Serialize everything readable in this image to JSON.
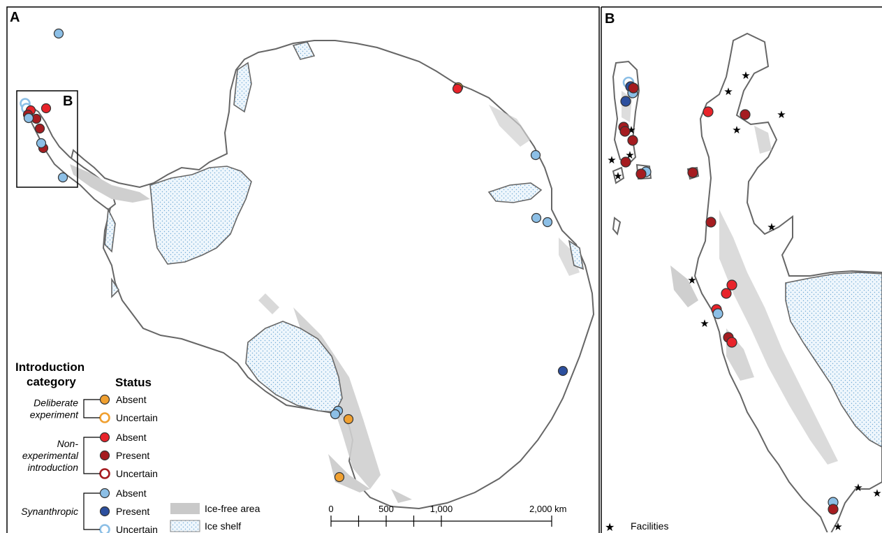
{
  "panels": {
    "a_label": "A",
    "b_label": "B",
    "inset_label": "B"
  },
  "colors": {
    "deliberate_absent": "#f0a030",
    "nonexp_absent": "#e8232a",
    "nonexp_present": "#a51c20",
    "synan_absent": "#8cbfe6",
    "synan_present": "#2c4f9e",
    "ice_free": "#c9c9c9",
    "ice_shelf_fill": "#e6f2fa",
    "ice_shelf_dots": "#7fb7dd",
    "coast": "#666666"
  },
  "legend": {
    "title_line1": "Introduction",
    "title_line2": "category",
    "status_title": "Status",
    "groups": [
      {
        "name_lines": [
          "Deliberate",
          "experiment"
        ],
        "items": [
          {
            "label": "Absent",
            "style": "filled",
            "color": "#f0a030"
          },
          {
            "label": "Uncertain",
            "style": "ring",
            "color": "#f0a030"
          }
        ]
      },
      {
        "name_lines": [
          "Non-",
          "experimental",
          "introduction"
        ],
        "items": [
          {
            "label": "Absent",
            "style": "filled",
            "color": "#e8232a"
          },
          {
            "label": "Present",
            "style": "filled",
            "color": "#a51c20"
          },
          {
            "label": "Uncertain",
            "style": "ring",
            "color": "#a51c20"
          }
        ]
      },
      {
        "name_lines": [
          "Synanthropic"
        ],
        "items": [
          {
            "label": "Absent",
            "style": "filled",
            "color": "#8cbfe6"
          },
          {
            "label": "Present",
            "style": "filled",
            "color": "#2c4f9e"
          },
          {
            "label": "Uncertain",
            "style": "ring",
            "color": "#8cbfe6"
          }
        ]
      }
    ],
    "area_items": [
      {
        "label": "Ice-free area"
      },
      {
        "label": "Ice shelf"
      }
    ],
    "facilities_label": "Facilities"
  },
  "scale_bar": {
    "ticks": [
      {
        "value": 0,
        "label": "0"
      },
      {
        "value": 250,
        "label": ""
      },
      {
        "value": 500,
        "label": "500"
      },
      {
        "value": 750,
        "label": ""
      },
      {
        "value": 1000,
        "label": "1,000"
      },
      {
        "value": 2000,
        "label": "2,000 km"
      }
    ],
    "max_km": 2000
  },
  "map_a_sites": [
    {
      "status": "synan_absent"
    },
    {
      "status": "synan_uncertain"
    },
    {
      "status": "synan_uncertain"
    },
    {
      "status": "nonexp_absent"
    },
    {
      "status": "nonexp_absent"
    },
    {
      "status": "nonexp_present"
    },
    {
      "status": "nonexp_present"
    },
    {
      "status": "nonexp_present"
    },
    {
      "status": "nonexp_present"
    },
    {
      "status": "synan_absent"
    },
    {
      "status": "synan_absent"
    },
    {
      "status": "synan_absent"
    },
    {
      "status": "deliberate_absent"
    },
    {
      "status": "nonexp_absent"
    },
    {
      "status": "synan_absent"
    },
    {
      "status": "synan_absent"
    },
    {
      "status": "synan_absent"
    },
    {
      "status": "synan_present"
    },
    {
      "status": "synan_absent"
    },
    {
      "status": "synan_absent"
    },
    {
      "status": "deliberate_absent"
    },
    {
      "status": "deliberate_absent"
    }
  ],
  "map_b_sites": [
    {
      "status": "synan_uncertain"
    },
    {
      "status": "synan_present"
    },
    {
      "status": "synan_absent"
    },
    {
      "status": "nonexp_present"
    },
    {
      "status": "synan_present"
    },
    {
      "status": "nonexp_present"
    },
    {
      "status": "nonexp_present"
    },
    {
      "status": "nonexp_present"
    },
    {
      "status": "nonexp_present"
    },
    {
      "status": "synan_absent"
    },
    {
      "status": "nonexp_present"
    },
    {
      "status": "nonexp_absent"
    },
    {
      "status": "nonexp_present"
    },
    {
      "status": "nonexp_present"
    },
    {
      "status": "nonexp_present"
    },
    {
      "status": "nonexp_absent"
    },
    {
      "status": "nonexp_absent"
    },
    {
      "status": "nonexp_absent"
    },
    {
      "status": "synan_absent"
    },
    {
      "status": "nonexp_present"
    },
    {
      "status": "nonexp_absent"
    },
    {
      "status": "synan_absent"
    },
    {
      "status": "nonexp_present"
    }
  ],
  "facility_count_b": 14
}
